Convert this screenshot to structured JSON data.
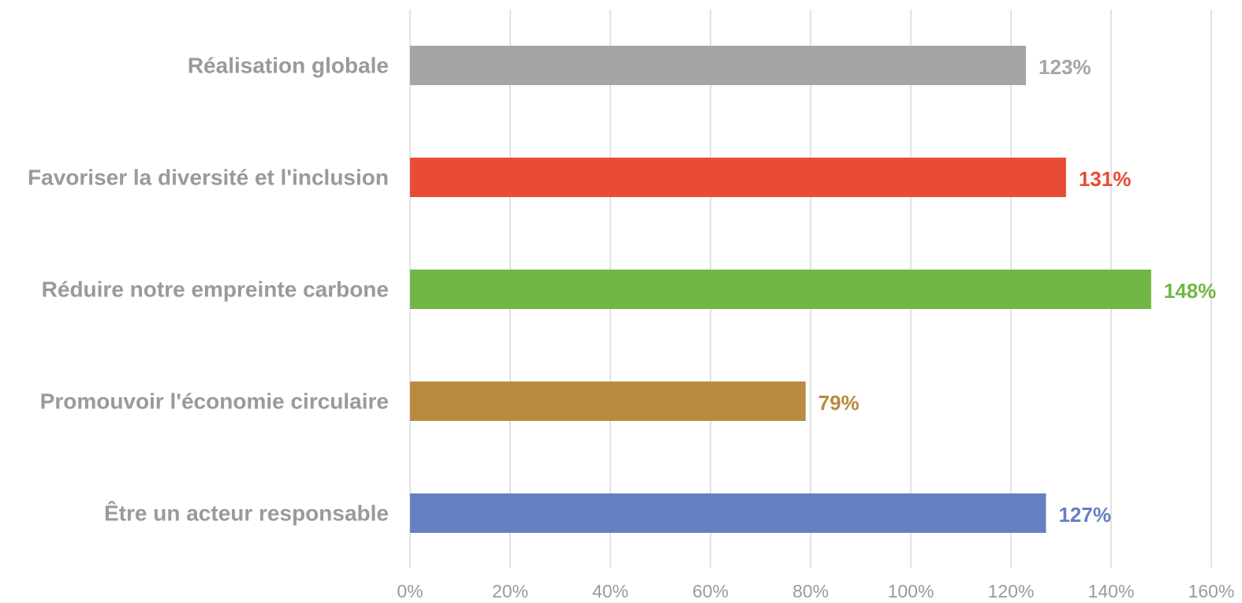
{
  "chart_data": {
    "type": "bar",
    "orientation": "horizontal",
    "categories": [
      "Réalisation globale",
      "Favoriser la diversité et l'inclusion",
      "Réduire notre empreinte carbone",
      "Promouvoir l'économie circulaire",
      "Être un acteur responsable"
    ],
    "values": [
      123,
      131,
      148,
      79,
      127
    ],
    "value_labels": [
      "123%",
      "131%",
      "148%",
      "79%",
      "127%"
    ],
    "colors": [
      "#a5a5a5",
      "#e84c32",
      "#70b745",
      "#b88b3f",
      "#6580c0"
    ],
    "xlim": [
      0,
      160
    ],
    "x_ticks": [
      0,
      20,
      40,
      60,
      80,
      100,
      120,
      140,
      160
    ],
    "x_tick_labels": [
      "0%",
      "20%",
      "40%",
      "60%",
      "80%",
      "100%",
      "120%",
      "140%",
      "160%"
    ],
    "grid": "vertical",
    "title": "",
    "xlabel": "",
    "ylabel": "",
    "legend": "none"
  }
}
